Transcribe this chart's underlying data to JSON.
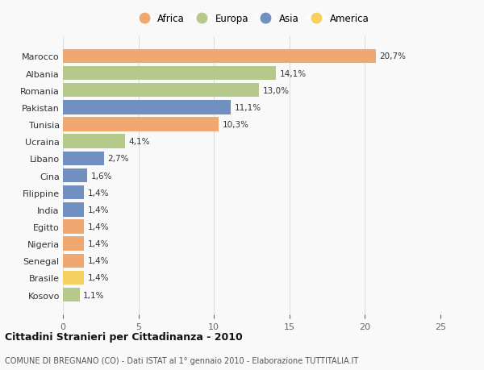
{
  "countries": [
    "Marocco",
    "Albania",
    "Romania",
    "Pakistan",
    "Tunisia",
    "Ucraina",
    "Libano",
    "Cina",
    "Filippine",
    "India",
    "Egitto",
    "Nigeria",
    "Senegal",
    "Brasile",
    "Kosovo"
  ],
  "values": [
    20.7,
    14.1,
    13.0,
    11.1,
    10.3,
    4.1,
    2.7,
    1.6,
    1.4,
    1.4,
    1.4,
    1.4,
    1.4,
    1.4,
    1.1
  ],
  "continents": [
    "Africa",
    "Europa",
    "Europa",
    "Asia",
    "Africa",
    "Europa",
    "Asia",
    "Asia",
    "Asia",
    "Asia",
    "Africa",
    "Africa",
    "Africa",
    "America",
    "Europa"
  ],
  "continent_colors": {
    "Africa": "#F0A870",
    "Europa": "#B5C98A",
    "Asia": "#7090C0",
    "America": "#F5D060"
  },
  "labels": [
    "20,7%",
    "14,1%",
    "13,0%",
    "11,1%",
    "10,3%",
    "4,1%",
    "2,7%",
    "1,6%",
    "1,4%",
    "1,4%",
    "1,4%",
    "1,4%",
    "1,4%",
    "1,4%",
    "1,1%"
  ],
  "title": "Cittadini Stranieri per Cittadinanza - 2010",
  "subtitle": "COMUNE DI BREGNANO (CO) - Dati ISTAT al 1° gennaio 2010 - Elaborazione TUTTITALIA.IT",
  "xlim": [
    0,
    25
  ],
  "xticks": [
    0,
    5,
    10,
    15,
    20,
    25
  ],
  "background_color": "#f9f9f9",
  "bar_height": 0.82,
  "legend_order": [
    "Africa",
    "Europa",
    "Asia",
    "America"
  ]
}
